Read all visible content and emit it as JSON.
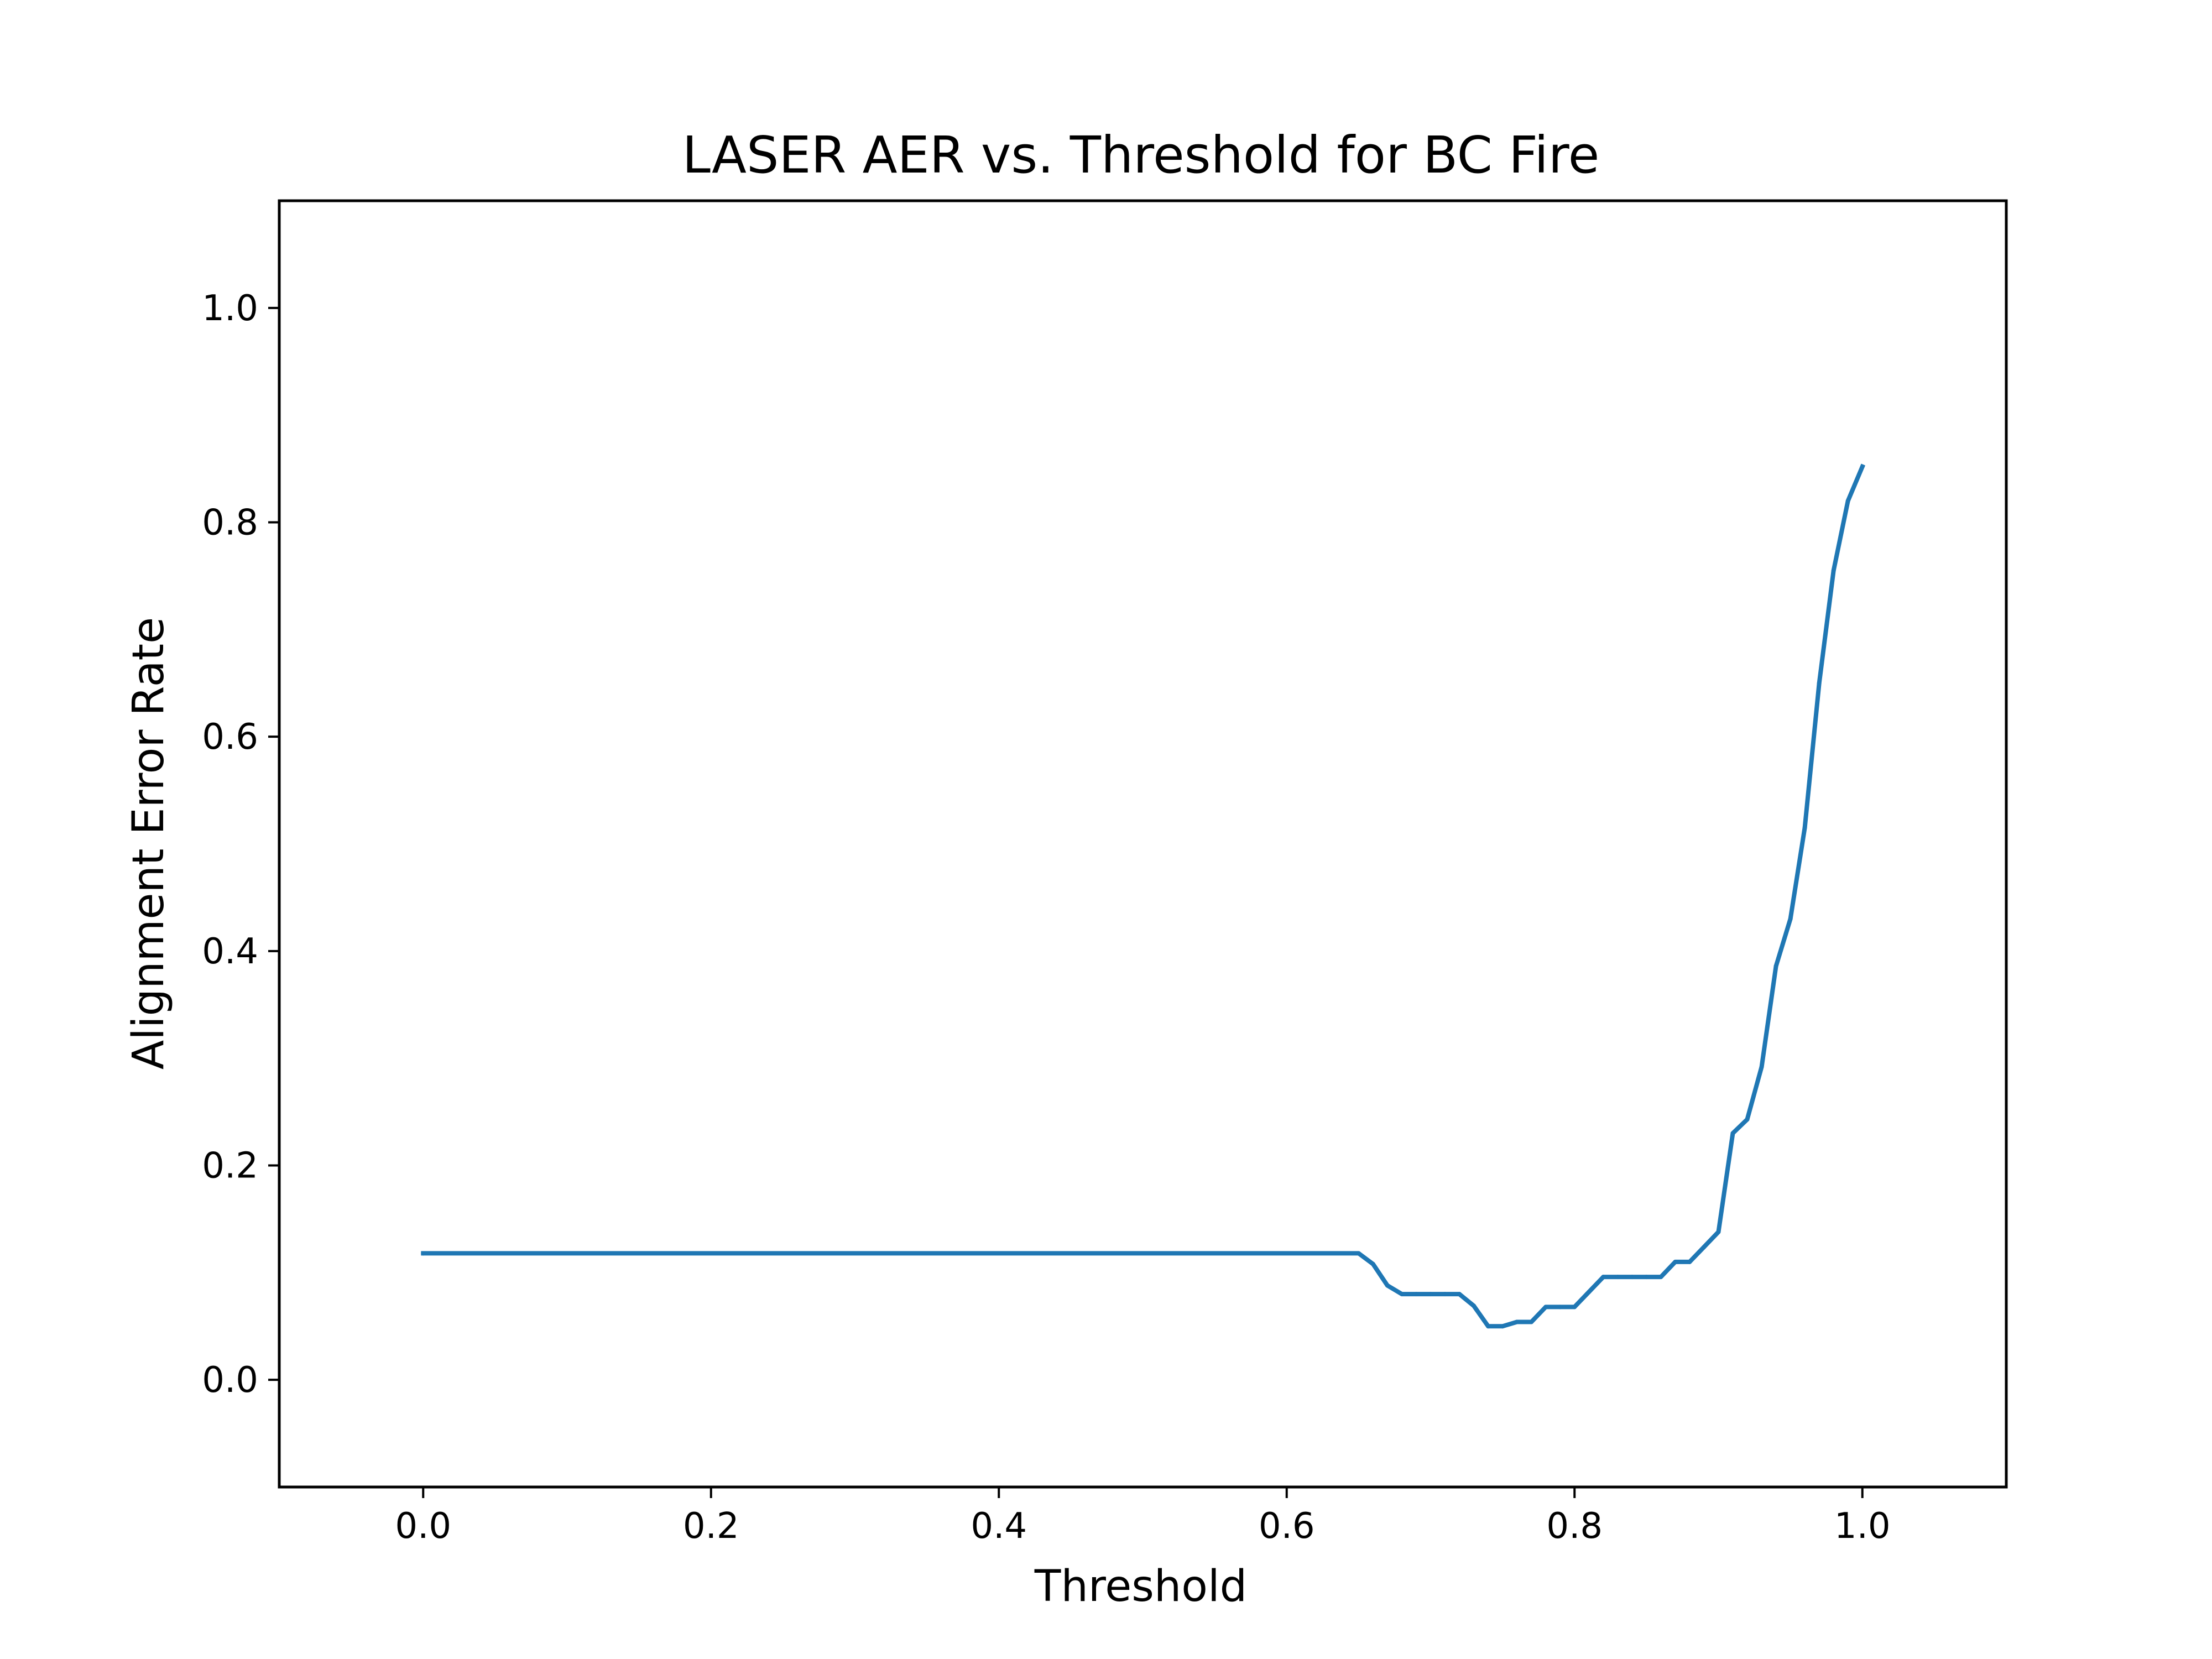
{
  "chart_data": {
    "type": "line",
    "title": "LASER AER vs. Threshold for BC Fire",
    "xlabel": "Threshold",
    "ylabel": "Alignment Error Rate",
    "xlim": [
      -0.1,
      1.1
    ],
    "ylim": [
      -0.1,
      1.1
    ],
    "xticks": [
      0.0,
      0.2,
      0.4,
      0.6,
      0.8,
      1.0
    ],
    "xtick_labels": [
      "0.0",
      "0.2",
      "0.4",
      "0.6",
      "0.8",
      "1.0"
    ],
    "yticks": [
      0.0,
      0.2,
      0.4,
      0.6,
      0.8,
      1.0
    ],
    "ytick_labels": [
      "0.0",
      "0.2",
      "0.4",
      "0.6",
      "0.8",
      "1.0"
    ],
    "grid": false,
    "legend": "none",
    "line_color": "#1f77b4",
    "series": [
      {
        "x": [
          0.0,
          0.65,
          0.66,
          0.67,
          0.68,
          0.69,
          0.7,
          0.71,
          0.72,
          0.73,
          0.74,
          0.75,
          0.76,
          0.77,
          0.78,
          0.79,
          0.8,
          0.81,
          0.82,
          0.83,
          0.84,
          0.85,
          0.86,
          0.87,
          0.88,
          0.89,
          0.9,
          0.91,
          0.92,
          0.93,
          0.94,
          0.95,
          0.96,
          0.97,
          0.98,
          0.99,
          1.0
        ],
        "y": [
          0.118,
          0.118,
          0.108,
          0.088,
          0.08,
          0.08,
          0.08,
          0.08,
          0.08,
          0.069,
          0.05,
          0.05,
          0.054,
          0.054,
          0.068,
          0.068,
          0.068,
          0.082,
          0.096,
          0.096,
          0.096,
          0.096,
          0.096,
          0.11,
          0.11,
          0.124,
          0.138,
          0.23,
          0.243,
          0.292,
          0.386,
          0.43,
          0.515,
          0.65,
          0.755,
          0.82,
          0.852
        ]
      }
    ]
  }
}
